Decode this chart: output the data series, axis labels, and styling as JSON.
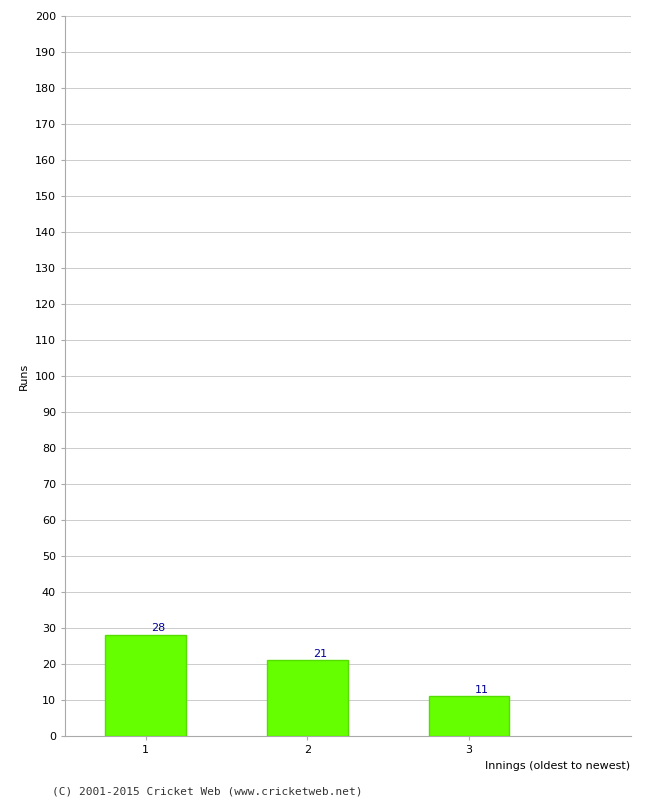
{
  "categories": [
    "1",
    "2",
    "3"
  ],
  "values": [
    28,
    21,
    11
  ],
  "bar_color": "#66ff00",
  "bar_edge_color": "#55dd00",
  "ylabel": "Runs",
  "xlabel": "Innings (oldest to newest)",
  "ylim": [
    0,
    200
  ],
  "yticks": [
    0,
    10,
    20,
    30,
    40,
    50,
    60,
    70,
    80,
    90,
    100,
    110,
    120,
    130,
    140,
    150,
    160,
    170,
    180,
    190,
    200
  ],
  "label_color": "#000099",
  "label_fontsize": 8,
  "footer_text": "(C) 2001-2015 Cricket Web (www.cricketweb.net)",
  "background_color": "#ffffff",
  "grid_color": "#cccccc",
  "ylabel_fontsize": 8,
  "xlabel_fontsize": 8,
  "tick_fontsize": 8,
  "footer_fontsize": 8,
  "spine_color": "#aaaaaa"
}
